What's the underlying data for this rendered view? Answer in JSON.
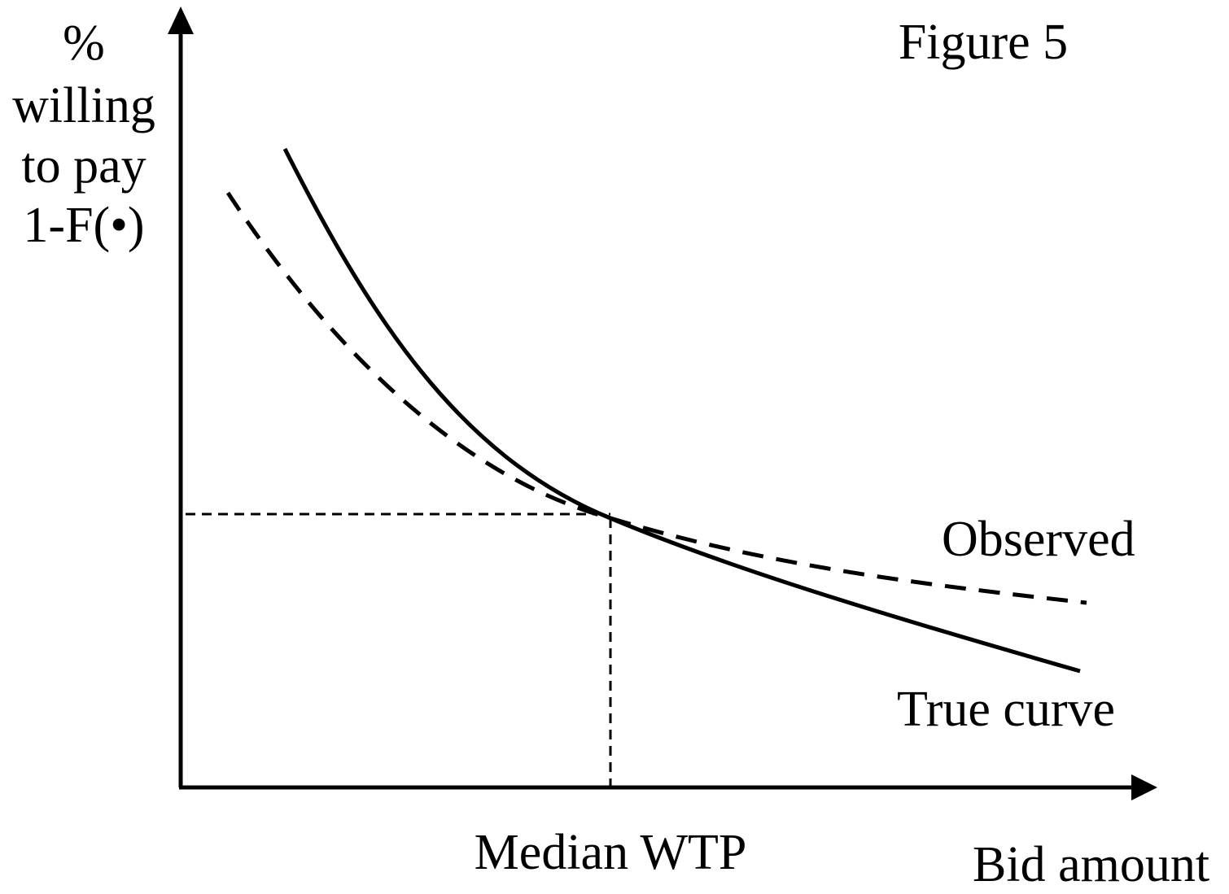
{
  "title": "Figure 5",
  "y_axis_label": [
    "%",
    "willing",
    "to pay",
    "1-F(•)"
  ],
  "x_axis_label": "Bid amount",
  "median_label": "Median WTP",
  "curves": [
    {
      "label": "Observed"
    },
    {
      "label": "True curve"
    }
  ]
}
